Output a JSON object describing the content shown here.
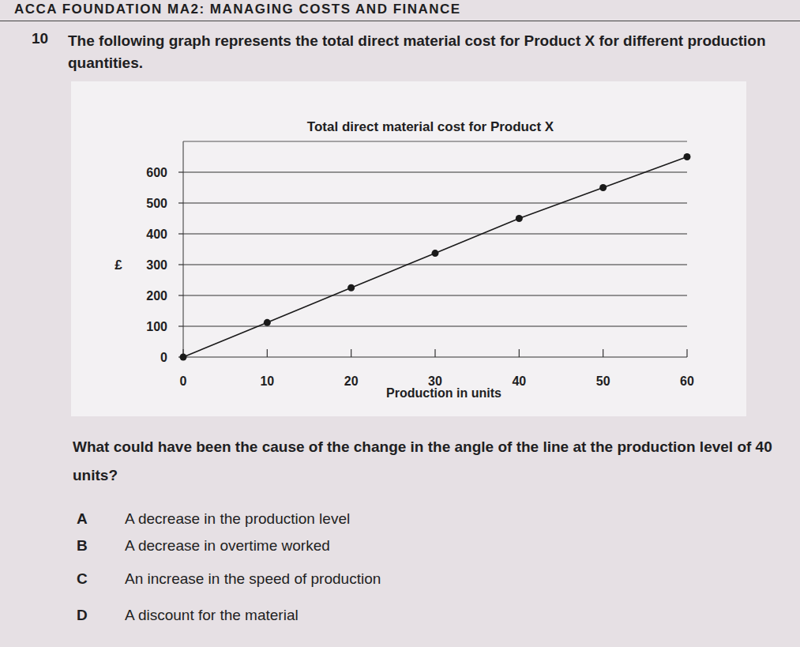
{
  "header": {
    "text": "ACCA FOUNDATION MA2: MANAGING COSTS AND FINANCE"
  },
  "intro": {
    "number": "10",
    "text": "The following graph represents the total direct material cost for Product X for different production quantities."
  },
  "chart_data": {
    "type": "line",
    "title": "Total direct material cost for Product X",
    "x_label": "Production in units",
    "y_label": "£",
    "x": [
      0,
      10,
      20,
      30,
      40,
      50,
      60
    ],
    "series": [
      {
        "name": "Total direct material cost",
        "color": "#1a1a1a",
        "values": [
          0,
          112,
          225,
          337,
          450,
          550,
          650
        ],
        "marker": "circle"
      }
    ],
    "xlim": [
      0,
      60
    ],
    "xticks": [
      0,
      10,
      20,
      30,
      40,
      50,
      60
    ],
    "ylim": [
      0,
      700
    ],
    "yticks": [
      0,
      100,
      200,
      300,
      400,
      500,
      600
    ],
    "grid": true
  },
  "question": {
    "text": "What could have been the cause of the change in the angle of the line at the production level of 40 units?",
    "options": [
      {
        "letter": "A",
        "text": "A decrease in the production level"
      },
      {
        "letter": "B",
        "text": "A decrease in overtime worked"
      },
      {
        "letter": "C",
        "text": "An increase in the speed of production"
      },
      {
        "letter": "D",
        "text": "A discount for the material"
      }
    ]
  }
}
